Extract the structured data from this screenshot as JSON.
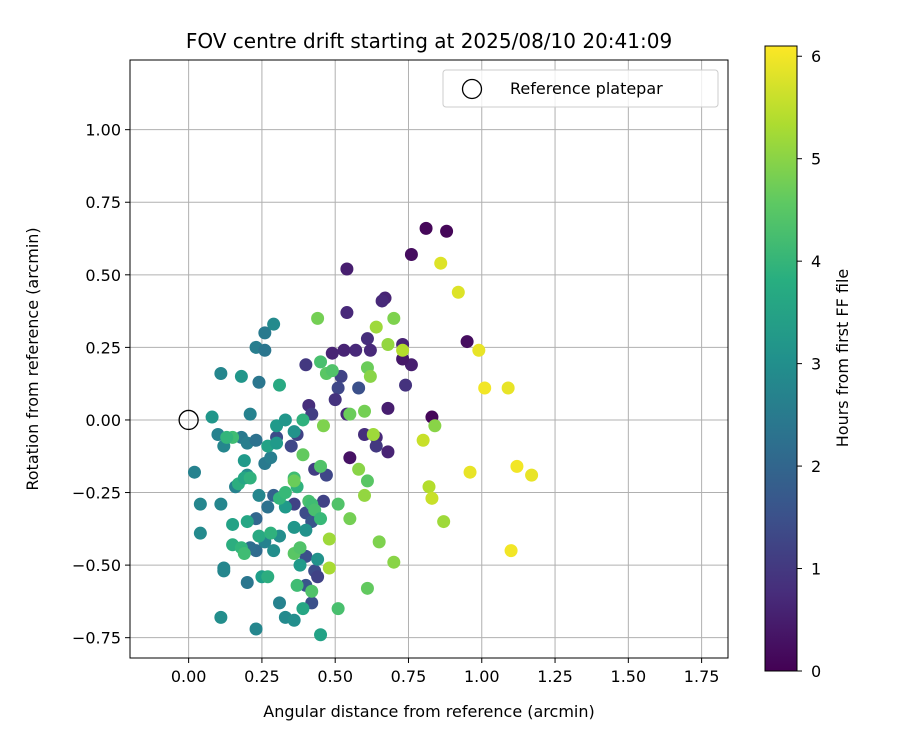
{
  "chart_data": {
    "type": "scatter",
    "title": "FOV centre drift starting at 2025/08/10 20:41:09",
    "xlabel": "Angular distance from reference (arcmin)",
    "ylabel": "Rotation from reference (arcmin)",
    "xlim": [
      -0.2,
      1.84
    ],
    "ylim": [
      -0.82,
      1.24
    ],
    "x_ticks": [
      0.0,
      0.25,
      0.5,
      0.75,
      1.0,
      1.25,
      1.5,
      1.75
    ],
    "x_tick_labels": [
      "0.00",
      "0.25",
      "0.50",
      "0.75",
      "1.00",
      "1.25",
      "1.50",
      "1.75"
    ],
    "y_ticks": [
      -0.75,
      -0.5,
      -0.25,
      0.0,
      0.25,
      0.5,
      0.75,
      1.0
    ],
    "y_tick_labels": [
      "−0.75",
      "−0.50",
      "−0.25",
      "0.00",
      "0.25",
      "0.50",
      "0.75",
      "1.00"
    ],
    "grid": true,
    "legend": {
      "position": "top-right",
      "label": "Reference platepar",
      "marker": "open-circle"
    },
    "reference_point": {
      "x": 0.0,
      "y": 0.0
    },
    "colorbar": {
      "label": "Hours from first FF file",
      "colormap": "viridis",
      "range": [
        0,
        6.1
      ],
      "ticks": [
        0,
        1,
        2,
        3,
        4,
        5,
        6
      ],
      "tick_labels": [
        "0",
        "1",
        "2",
        "3",
        "4",
        "5",
        "6"
      ]
    },
    "points": [
      [
        0.81,
        0.66,
        0.1
      ],
      [
        0.88,
        0.65,
        0.1
      ],
      [
        0.76,
        0.57,
        0.2
      ],
      [
        0.54,
        0.52,
        0.5
      ],
      [
        0.67,
        0.42,
        0.6
      ],
      [
        0.66,
        0.41,
        0.7
      ],
      [
        0.54,
        0.37,
        0.7
      ],
      [
        0.61,
        0.28,
        0.8
      ],
      [
        0.95,
        0.27,
        0.2
      ],
      [
        0.73,
        0.26,
        0.6
      ],
      [
        0.62,
        0.24,
        0.7
      ],
      [
        0.57,
        0.24,
        0.7
      ],
      [
        0.53,
        0.24,
        0.6
      ],
      [
        0.49,
        0.23,
        0.6
      ],
      [
        0.76,
        0.19,
        0.5
      ],
      [
        0.4,
        0.19,
        1.0
      ],
      [
        0.73,
        0.21,
        0.4
      ],
      [
        0.52,
        0.15,
        1.2
      ],
      [
        0.51,
        0.11,
        1.3
      ],
      [
        0.58,
        0.11,
        1.5
      ],
      [
        0.68,
        0.04,
        0.5
      ],
      [
        0.5,
        0.07,
        0.9
      ],
      [
        0.41,
        0.05,
        0.8
      ],
      [
        0.74,
        0.12,
        0.9
      ],
      [
        0.42,
        0.02,
        1.1
      ],
      [
        0.83,
        0.01,
        0.1
      ],
      [
        0.54,
        0.02,
        0.7
      ],
      [
        0.6,
        -0.05,
        0.8
      ],
      [
        0.64,
        -0.06,
        0.7
      ],
      [
        0.55,
        -0.13,
        0.3
      ],
      [
        0.64,
        -0.09,
        1.0
      ],
      [
        0.68,
        -0.11,
        0.6
      ],
      [
        0.37,
        -0.05,
        1.2
      ],
      [
        0.3,
        -0.06,
        1.4
      ],
      [
        0.35,
        -0.09,
        1.3
      ],
      [
        0.43,
        -0.17,
        1.1
      ],
      [
        0.47,
        -0.19,
        1.3
      ],
      [
        0.36,
        -0.29,
        1.2
      ],
      [
        0.46,
        -0.28,
        1.2
      ],
      [
        0.4,
        -0.32,
        1.4
      ],
      [
        0.42,
        -0.35,
        1.6
      ],
      [
        0.29,
        -0.26,
        1.9
      ],
      [
        0.4,
        -0.47,
        1.5
      ],
      [
        0.43,
        -0.52,
        1.4
      ],
      [
        0.44,
        -0.54,
        1.2
      ],
      [
        0.4,
        -0.57,
        1.6
      ],
      [
        0.42,
        -0.63,
        1.5
      ],
      [
        0.23,
        -0.34,
        2.0
      ],
      [
        0.23,
        -0.45,
        2.1
      ],
      [
        0.21,
        -0.44,
        2.2
      ],
      [
        0.2,
        -0.56,
        2.4
      ],
      [
        0.27,
        -0.3,
        2.3
      ],
      [
        0.26,
        0.3,
        2.5
      ],
      [
        0.23,
        0.25,
        2.6
      ],
      [
        0.26,
        0.24,
        2.4
      ],
      [
        0.29,
        0.33,
        2.9
      ],
      [
        0.24,
        0.13,
        2.4
      ],
      [
        0.18,
        -0.06,
        2.5
      ],
      [
        0.2,
        -0.08,
        2.6
      ],
      [
        0.23,
        -0.07,
        2.3
      ],
      [
        0.26,
        -0.15,
        2.5
      ],
      [
        0.28,
        -0.13,
        2.6
      ],
      [
        0.19,
        -0.14,
        3.3
      ],
      [
        0.12,
        -0.09,
        2.8
      ],
      [
        0.1,
        -0.05,
        2.7
      ],
      [
        0.08,
        0.01,
        3.2
      ],
      [
        0.11,
        0.16,
        2.8
      ],
      [
        0.18,
        0.15,
        3.2
      ],
      [
        0.21,
        0.02,
        2.7
      ],
      [
        0.02,
        -0.18,
        2.7
      ],
      [
        0.04,
        -0.29,
        2.8
      ],
      [
        0.04,
        -0.39,
        2.9
      ],
      [
        0.11,
        -0.29,
        2.8
      ],
      [
        0.16,
        -0.23,
        2.7
      ],
      [
        0.24,
        -0.26,
        2.8
      ],
      [
        0.2,
        -0.19,
        3.0
      ],
      [
        0.26,
        -0.42,
        2.7
      ],
      [
        0.12,
        -0.51,
        2.8
      ],
      [
        0.12,
        -0.52,
        2.8
      ],
      [
        0.11,
        -0.68,
        3.0
      ],
      [
        0.23,
        -0.72,
        2.8
      ],
      [
        0.31,
        -0.63,
        2.7
      ],
      [
        0.33,
        -0.68,
        2.9
      ],
      [
        0.36,
        -0.69,
        3.0
      ],
      [
        0.39,
        -0.65,
        3.6
      ],
      [
        0.45,
        -0.74,
        3.5
      ],
      [
        0.25,
        -0.54,
        3.4
      ],
      [
        0.27,
        -0.54,
        3.8
      ],
      [
        0.29,
        -0.45,
        3.0
      ],
      [
        0.38,
        -0.5,
        3.3
      ],
      [
        0.44,
        -0.48,
        3.1
      ],
      [
        0.4,
        -0.38,
        3.1
      ],
      [
        0.36,
        -0.37,
        3.2
      ],
      [
        0.31,
        -0.4,
        3.0
      ],
      [
        0.33,
        -0.3,
        3.3
      ],
      [
        0.3,
        -0.02,
        3.3
      ],
      [
        0.33,
        0.0,
        3.2
      ],
      [
        0.36,
        -0.04,
        3.1
      ],
      [
        0.27,
        -0.09,
        3.5
      ],
      [
        0.3,
        -0.08,
        3.3
      ],
      [
        0.31,
        0.12,
        3.7
      ],
      [
        0.39,
        0.0,
        3.9
      ],
      [
        0.15,
        -0.36,
        3.5
      ],
      [
        0.2,
        -0.35,
        3.6
      ],
      [
        0.17,
        -0.22,
        3.8
      ],
      [
        0.19,
        -0.2,
        3.6
      ],
      [
        0.21,
        -0.2,
        3.9
      ],
      [
        0.15,
        -0.06,
        4.2
      ],
      [
        0.13,
        -0.06,
        4.0
      ],
      [
        0.15,
        -0.43,
        3.8
      ],
      [
        0.18,
        -0.44,
        4.0
      ],
      [
        0.19,
        -0.46,
        4.2
      ],
      [
        0.24,
        -0.4,
        3.7
      ],
      [
        0.28,
        -0.39,
        3.9
      ],
      [
        0.31,
        -0.27,
        4.0
      ],
      [
        0.33,
        -0.25,
        4.1
      ],
      [
        0.36,
        -0.2,
        4.2
      ],
      [
        0.37,
        -0.23,
        3.9
      ],
      [
        0.36,
        -0.46,
        4.5
      ],
      [
        0.38,
        -0.44,
        4.4
      ],
      [
        0.41,
        -0.28,
        4.3
      ],
      [
        0.42,
        -0.29,
        4.2
      ],
      [
        0.43,
        -0.31,
        4.3
      ],
      [
        0.45,
        -0.16,
        4.4
      ],
      [
        0.39,
        -0.12,
        4.6
      ],
      [
        0.45,
        0.2,
        4.3
      ],
      [
        0.47,
        0.16,
        4.5
      ],
      [
        0.49,
        0.17,
        4.4
      ],
      [
        0.45,
        -0.34,
        4.1
      ],
      [
        0.37,
        -0.57,
        4.2
      ],
      [
        0.42,
        -0.59,
        4.4
      ],
      [
        0.61,
        -0.58,
        4.6
      ],
      [
        0.51,
        -0.65,
        4.3
      ],
      [
        0.65,
        -0.42,
        4.9
      ],
      [
        0.7,
        -0.49,
        5.0
      ],
      [
        0.55,
        -0.34,
        4.8
      ],
      [
        0.6,
        -0.26,
        5.1
      ],
      [
        0.61,
        -0.21,
        4.5
      ],
      [
        0.58,
        -0.17,
        5.0
      ],
      [
        0.51,
        -0.29,
        4.4
      ],
      [
        0.48,
        -0.41,
        5.2
      ],
      [
        0.48,
        -0.51,
        5.3
      ],
      [
        0.46,
        -0.02,
        4.9
      ],
      [
        0.55,
        0.02,
        4.7
      ],
      [
        0.6,
        0.03,
        4.8
      ],
      [
        0.61,
        0.18,
        4.7
      ],
      [
        0.62,
        0.15,
        5.0
      ],
      [
        0.63,
        -0.05,
        5.2
      ],
      [
        0.64,
        0.32,
        5.2
      ],
      [
        0.68,
        0.26,
        5.1
      ],
      [
        0.7,
        0.35,
        4.9
      ],
      [
        0.73,
        0.24,
        5.4
      ],
      [
        0.44,
        0.35,
        4.8
      ],
      [
        0.84,
        -0.02,
        5.0
      ],
      [
        0.8,
        -0.07,
        5.6
      ],
      [
        0.82,
        -0.23,
        5.4
      ],
      [
        0.83,
        -0.27,
        5.6
      ],
      [
        0.87,
        -0.35,
        5.2
      ],
      [
        0.86,
        0.54,
        5.8
      ],
      [
        0.92,
        0.44,
        5.8
      ],
      [
        0.99,
        0.24,
        5.9
      ],
      [
        1.01,
        0.11,
        6.0
      ],
      [
        1.09,
        0.11,
        5.9
      ],
      [
        0.96,
        -0.18,
        5.9
      ],
      [
        1.12,
        -0.16,
        6.0
      ],
      [
        1.17,
        -0.19,
        5.9
      ],
      [
        1.1,
        -0.45,
        6.0
      ],
      [
        0.36,
        -0.21,
        4.7
      ]
    ]
  }
}
